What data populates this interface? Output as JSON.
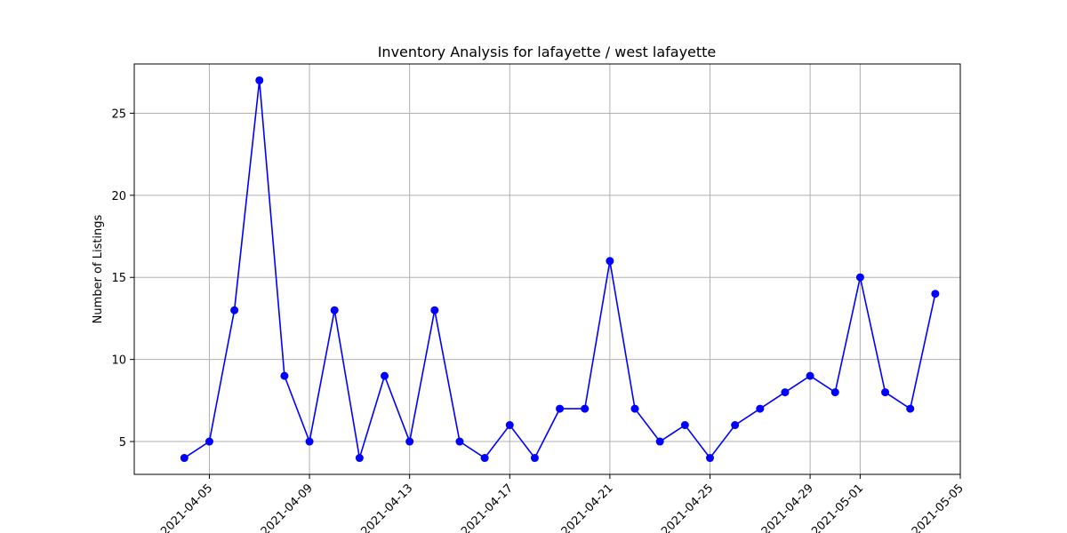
{
  "chart_data": {
    "type": "line",
    "title": "Inventory Analysis for lafayette / west lafayette",
    "xlabel": "",
    "ylabel": "Number of Listings",
    "grid": true,
    "color": "#0000ff",
    "marker": "circle",
    "xlim": [
      "2021-04-02",
      "2021-05-05"
    ],
    "ylim": [
      3,
      28
    ],
    "x_ticks": [
      "2021-04-05",
      "2021-04-09",
      "2021-04-13",
      "2021-04-17",
      "2021-04-21",
      "2021-04-25",
      "2021-04-29",
      "2021-05-01",
      "2021-05-05"
    ],
    "y_ticks": [
      5,
      10,
      15,
      20,
      25
    ],
    "series": [
      {
        "x": [
          "2021-04-04",
          "2021-04-05",
          "2021-04-06",
          "2021-04-07",
          "2021-04-08",
          "2021-04-09",
          "2021-04-10",
          "2021-04-11",
          "2021-04-12",
          "2021-04-13",
          "2021-04-14",
          "2021-04-15",
          "2021-04-16",
          "2021-04-17",
          "2021-04-18",
          "2021-04-19",
          "2021-04-20",
          "2021-04-21",
          "2021-04-22",
          "2021-04-23",
          "2021-04-24",
          "2021-04-25",
          "2021-04-26",
          "2021-04-27",
          "2021-04-28",
          "2021-04-29",
          "2021-04-30",
          "2021-05-01",
          "2021-05-02",
          "2021-05-03",
          "2021-05-04"
        ],
        "values": [
          4,
          5,
          13,
          27,
          9,
          5,
          13,
          4,
          9,
          5,
          13,
          5,
          4,
          6,
          4,
          7,
          7,
          16,
          7,
          5,
          6,
          4,
          6,
          7,
          8,
          9,
          8,
          15,
          8,
          7,
          14
        ]
      }
    ]
  }
}
